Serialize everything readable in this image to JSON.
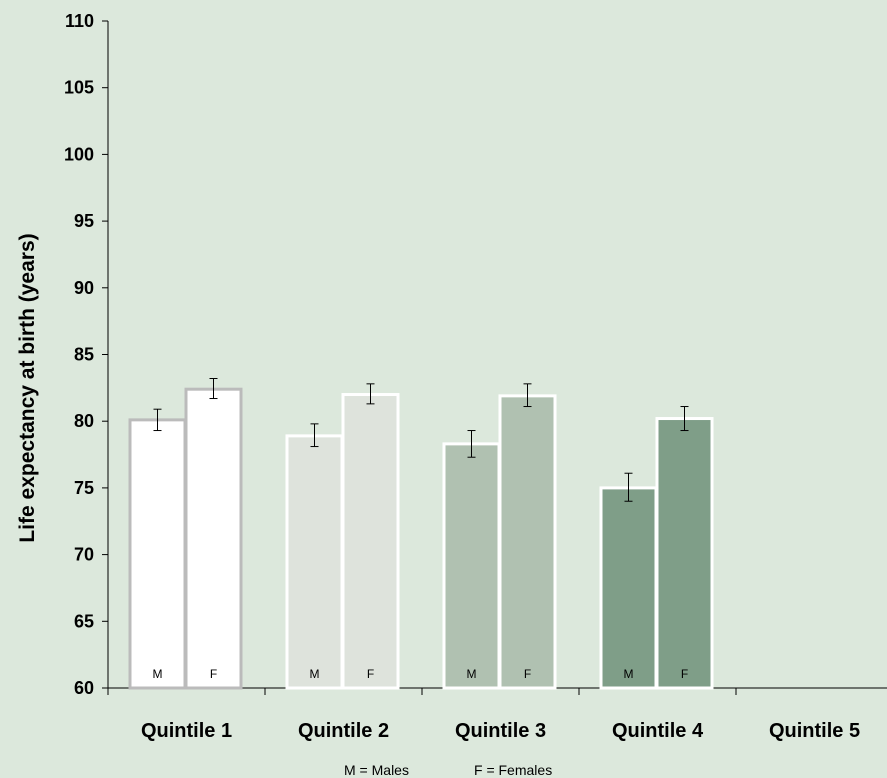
{
  "chart_data": {
    "type": "bar",
    "ylabel": "Life expectancy at birth (years)",
    "xlabel": "",
    "ylim": [
      60,
      110
    ],
    "yticks": [
      60,
      65,
      70,
      75,
      80,
      85,
      90,
      95,
      100,
      105,
      110
    ],
    "categories": [
      "Quintile 1",
      "Quintile 2",
      "Quintile 3",
      "Quintile 4",
      "Quintile 5"
    ],
    "bar_letters": [
      "M",
      "F"
    ],
    "groups": [
      {
        "category": "Quintile 1",
        "fill": "#ffffff",
        "stroke": "#bbbbbb",
        "bars": [
          {
            "letter": "M",
            "value": 80.1,
            "err_low": 79.3,
            "err_high": 80.9
          },
          {
            "letter": "F",
            "value": 82.4,
            "err_low": 81.7,
            "err_high": 83.2
          }
        ]
      },
      {
        "category": "Quintile 2",
        "fill": "#dee3dc",
        "stroke": "#ffffff",
        "bars": [
          {
            "letter": "M",
            "value": 78.9,
            "err_low": 78.1,
            "err_high": 79.8
          },
          {
            "letter": "F",
            "value": 82.0,
            "err_low": 81.3,
            "err_high": 82.8
          }
        ]
      },
      {
        "category": "Quintile 3",
        "fill": "#b0c1b1",
        "stroke": "#ffffff",
        "bars": [
          {
            "letter": "M",
            "value": 78.3,
            "err_low": 77.3,
            "err_high": 79.3
          },
          {
            "letter": "F",
            "value": 81.9,
            "err_low": 81.1,
            "err_high": 82.8
          }
        ]
      },
      {
        "category": "Quintile 4",
        "fill": "#7f9e88",
        "stroke": "#ffffff",
        "bars": [
          {
            "letter": "M",
            "value": 75.0,
            "err_low": 74.0,
            "err_high": 76.1
          },
          {
            "letter": "F",
            "value": 80.2,
            "err_low": 79.3,
            "err_high": 81.1
          }
        ]
      },
      {
        "category": "Quintile 5",
        "fill": "",
        "stroke": "",
        "bars": []
      }
    ],
    "legend": {
      "males": "M = Males",
      "females": "F = Females"
    },
    "colors": {
      "background": "#dce8dc",
      "axis": "#000000",
      "error_bar": "#000000"
    }
  }
}
